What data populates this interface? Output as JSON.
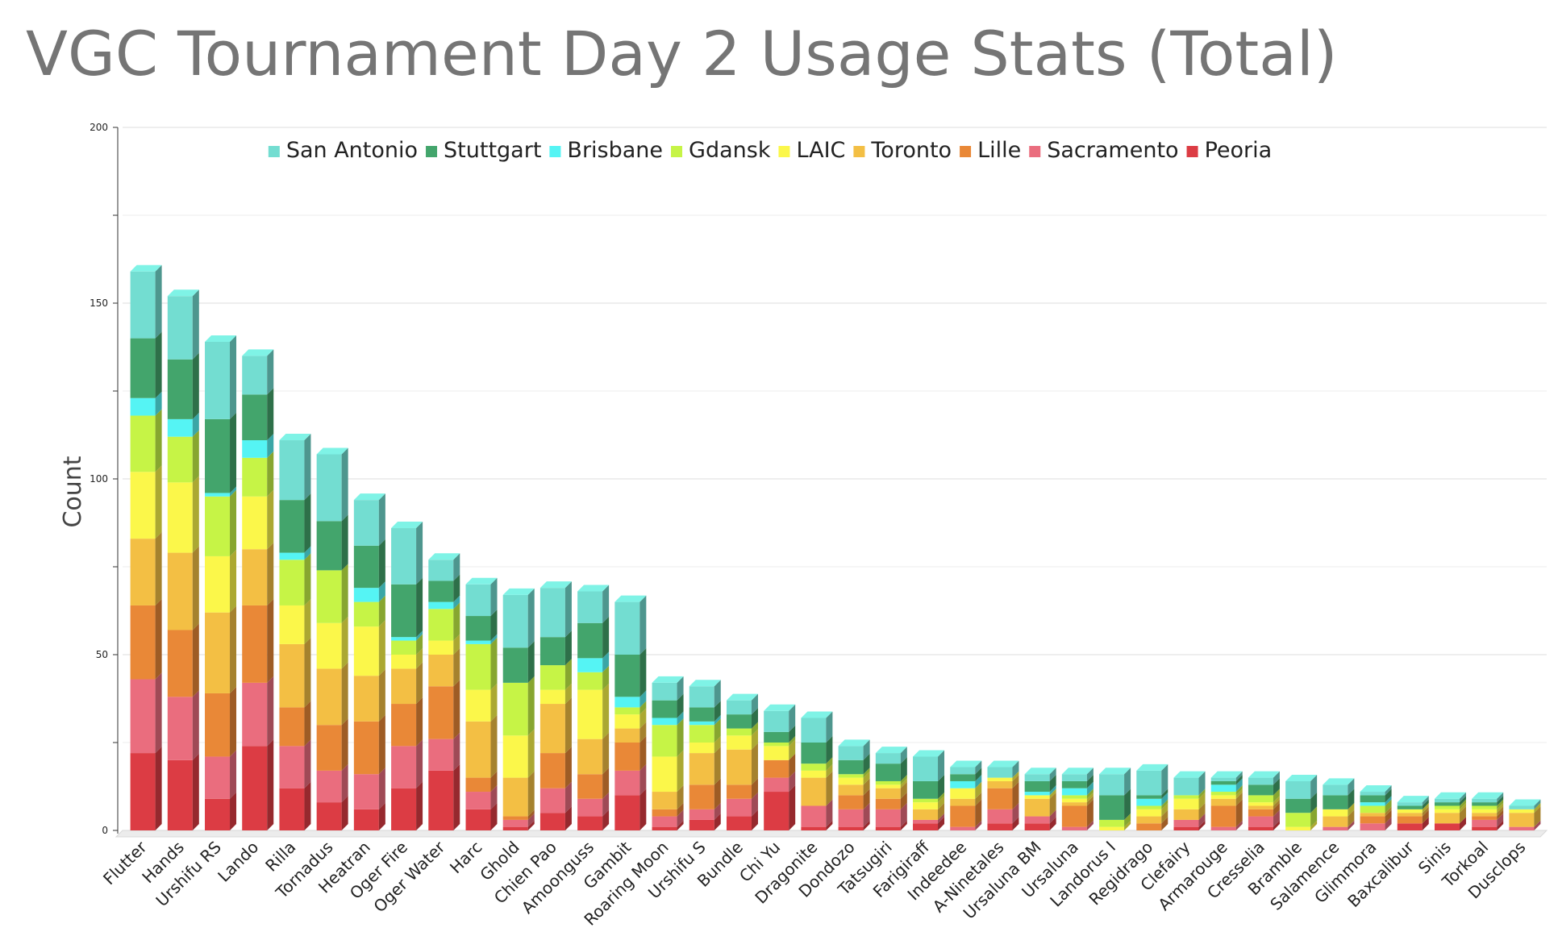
{
  "chart_data": {
    "type": "bar",
    "stacked": true,
    "title": "VGC Tournament Day 2 Usage Stats (Total)",
    "xlabel": "",
    "ylabel": "Count",
    "ylim": [
      0,
      200
    ],
    "yticks": [
      0,
      50,
      100,
      150,
      200
    ],
    "grid": true,
    "legend_position": "top",
    "categories": [
      "Flutter",
      "Hands",
      "Urshifu RS",
      "Lando",
      "Rilla",
      "Tornadus",
      "Heatran",
      "Oger Fire",
      "Oger Water",
      "Harc",
      "Ghold",
      "Chien Pao",
      "Amoonguss",
      "Gambit",
      "Roaring Moon",
      "Urshifu S",
      "Bundle",
      "Chi Yu",
      "Dragonite",
      "Dondozo",
      "Tatsugiri",
      "Farigiraff",
      "Indeedee",
      "A-Ninetales",
      "Ursaluna BM",
      "Ursaluna",
      "Landorus I",
      "Regidrago",
      "Clefairy",
      "Armarouge",
      "Cresselia",
      "Bramble",
      "Salamence",
      "Glimmora",
      "Baxcalibur",
      "Sinis",
      "Torkoal",
      "Dusclops"
    ],
    "series": [
      {
        "name": "Peoria",
        "color": "#dc3c44",
        "values": [
          22,
          20,
          9,
          24,
          12,
          8,
          6,
          12,
          17,
          6,
          1,
          5,
          4,
          10,
          1,
          3,
          4,
          11,
          1,
          1,
          1,
          2,
          0,
          2,
          2,
          0,
          0,
          0,
          1,
          0,
          1,
          0,
          0,
          0,
          2,
          2,
          1,
          0
        ]
      },
      {
        "name": "Sacramento",
        "color": "#ea6d7e",
        "values": [
          21,
          18,
          12,
          18,
          12,
          9,
          10,
          12,
          9,
          5,
          2,
          7,
          5,
          7,
          3,
          3,
          5,
          4,
          6,
          5,
          5,
          1,
          1,
          4,
          2,
          1,
          0,
          0,
          2,
          1,
          3,
          0,
          1,
          2,
          0,
          0,
          2,
          1
        ]
      },
      {
        "name": "Lille",
        "color": "#e98837",
        "values": [
          21,
          19,
          18,
          22,
          11,
          13,
          15,
          12,
          15,
          4,
          1,
          10,
          7,
          8,
          2,
          7,
          4,
          5,
          0,
          4,
          3,
          0,
          6,
          6,
          0,
          6,
          0,
          2,
          0,
          6,
          2,
          0,
          0,
          2,
          2,
          0,
          1,
          0
        ]
      },
      {
        "name": "Toronto",
        "color": "#f3bf44",
        "values": [
          19,
          22,
          23,
          16,
          18,
          16,
          13,
          10,
          9,
          16,
          11,
          14,
          10,
          4,
          5,
          9,
          10,
          0,
          8,
          3,
          3,
          3,
          2,
          2,
          5,
          1,
          0,
          2,
          3,
          2,
          1,
          0,
          3,
          1,
          1,
          3,
          1,
          4
        ]
      },
      {
        "name": "LAIC",
        "color": "#fbf74a",
        "values": [
          19,
          20,
          16,
          15,
          11,
          13,
          14,
          4,
          4,
          9,
          12,
          4,
          14,
          4,
          10,
          3,
          4,
          4,
          2,
          2,
          1,
          2,
          3,
          1,
          1,
          1,
          1,
          2,
          3,
          1,
          1,
          1,
          2,
          0,
          1,
          1,
          1,
          1
        ]
      },
      {
        "name": "Gdansk",
        "color": "#c6f446",
        "values": [
          16,
          13,
          17,
          11,
          13,
          15,
          7,
          4,
          9,
          13,
          15,
          7,
          5,
          2,
          9,
          5,
          2,
          1,
          2,
          1,
          1,
          1,
          0,
          0,
          0,
          1,
          2,
          1,
          1,
          1,
          2,
          4,
          0,
          2,
          0,
          1,
          1,
          0
        ]
      },
      {
        "name": "Brisbane",
        "color": "#55f4f4",
        "values": [
          5,
          5,
          1,
          5,
          2,
          0,
          4,
          1,
          2,
          1,
          0,
          0,
          4,
          3,
          2,
          1,
          0,
          0,
          0,
          0,
          0,
          0,
          2,
          0,
          1,
          2,
          0,
          2,
          0,
          2,
          0,
          0,
          0,
          1,
          0,
          0,
          0,
          0
        ]
      },
      {
        "name": "Stuttgart",
        "color": "#43a56c",
        "values": [
          17,
          17,
          21,
          13,
          15,
          14,
          12,
          15,
          6,
          7,
          10,
          8,
          10,
          12,
          5,
          4,
          4,
          3,
          6,
          4,
          5,
          5,
          2,
          0,
          3,
          2,
          7,
          1,
          0,
          1,
          3,
          4,
          4,
          2,
          1,
          1,
          1,
          0
        ]
      },
      {
        "name": "San Antonio",
        "color": "#73ddd1",
        "values": [
          19,
          18,
          22,
          11,
          17,
          19,
          13,
          16,
          6,
          9,
          15,
          14,
          9,
          15,
          5,
          6,
          4,
          6,
          7,
          4,
          3,
          7,
          2,
          3,
          2,
          2,
          6,
          7,
          5,
          1,
          2,
          5,
          3,
          1,
          1,
          1,
          1,
          1
        ]
      }
    ]
  }
}
